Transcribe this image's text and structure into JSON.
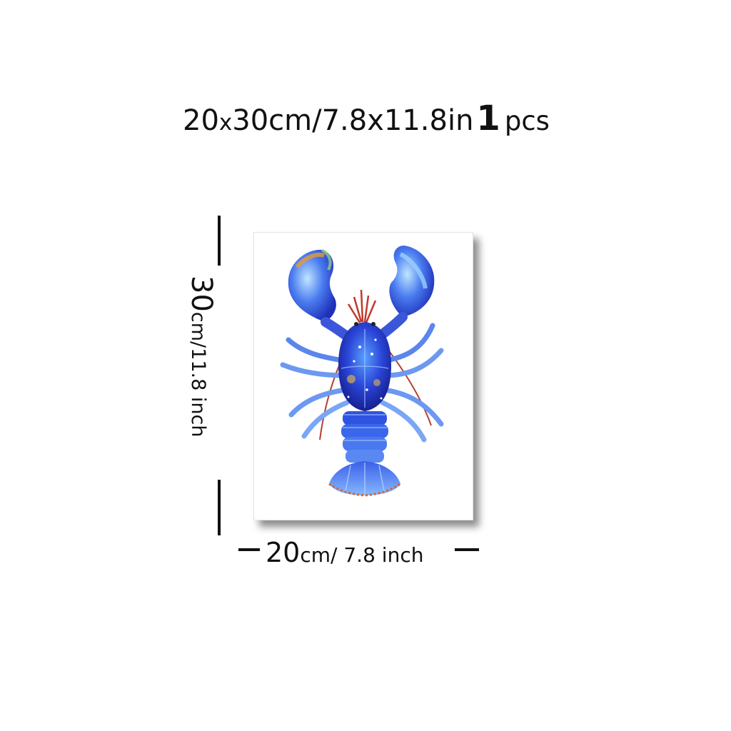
{
  "title": {
    "part1": "20",
    "part2": "x",
    "part3": "30cm/",
    "part4": " 7.8x11.8in",
    "part5": "1",
    "part6": "pcs"
  },
  "height_label": {
    "big": "30",
    "small": "cm/11.8 inch"
  },
  "width_label": {
    "big": "20",
    "small": "cm/ 7.8 inch"
  },
  "artwork": {
    "subject": "lobster-illustration",
    "main_color": "#2f4fd6",
    "accent_color": "#c0392b"
  }
}
